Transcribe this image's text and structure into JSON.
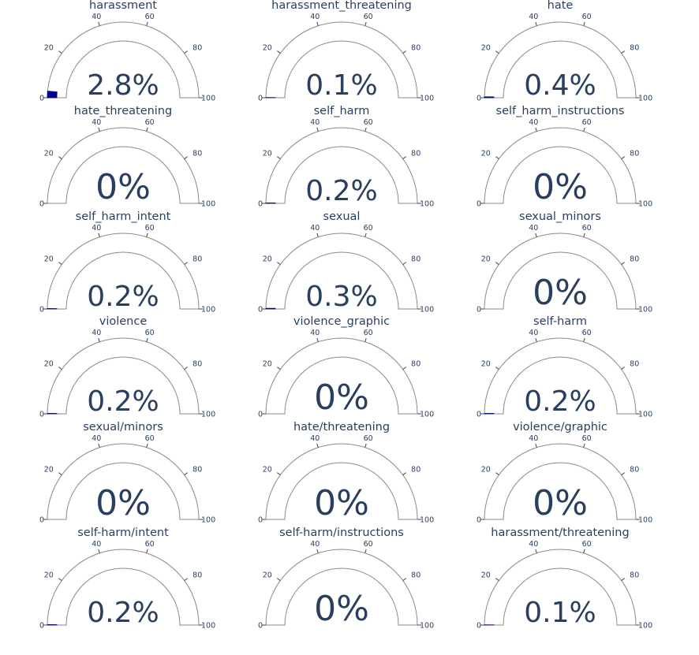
{
  "chart_data": {
    "type": "gauge",
    "axis_range": [
      0,
      100
    ],
    "tick_labels": [
      "0",
      "20",
      "40",
      "60",
      "80",
      "100"
    ],
    "value_suffix": "%",
    "bar_color": "#00008b",
    "text_color": "#2a3f5f",
    "gauges": [
      {
        "title": "harassment",
        "value": 2.8,
        "label": "2.8%"
      },
      {
        "title": "harassment_threatening",
        "value": 0.1,
        "label": "0.1%"
      },
      {
        "title": "hate",
        "value": 0.4,
        "label": "0.4%"
      },
      {
        "title": "hate_threatening",
        "value": 0,
        "label": "0%"
      },
      {
        "title": "self_harm",
        "value": 0.2,
        "label": "0.2%"
      },
      {
        "title": "self_harm_instructions",
        "value": 0,
        "label": "0%"
      },
      {
        "title": "self_harm_intent",
        "value": 0.2,
        "label": "0.2%"
      },
      {
        "title": "sexual",
        "value": 0.3,
        "label": "0.3%"
      },
      {
        "title": "sexual_minors",
        "value": 0,
        "label": "0%"
      },
      {
        "title": "violence",
        "value": 0.2,
        "label": "0.2%"
      },
      {
        "title": "violence_graphic",
        "value": 0,
        "label": "0%"
      },
      {
        "title": "self-harm",
        "value": 0.2,
        "label": "0.2%"
      },
      {
        "title": "sexual/minors",
        "value": 0,
        "label": "0%"
      },
      {
        "title": "hate/threatening",
        "value": 0,
        "label": "0%"
      },
      {
        "title": "violence/graphic",
        "value": 0,
        "label": "0%"
      },
      {
        "title": "self-harm/intent",
        "value": 0.2,
        "label": "0.2%"
      },
      {
        "title": "self-harm/instructions",
        "value": 0,
        "label": "0%"
      },
      {
        "title": "harassment/threatening",
        "value": 0.1,
        "label": "0.1%"
      }
    ]
  }
}
